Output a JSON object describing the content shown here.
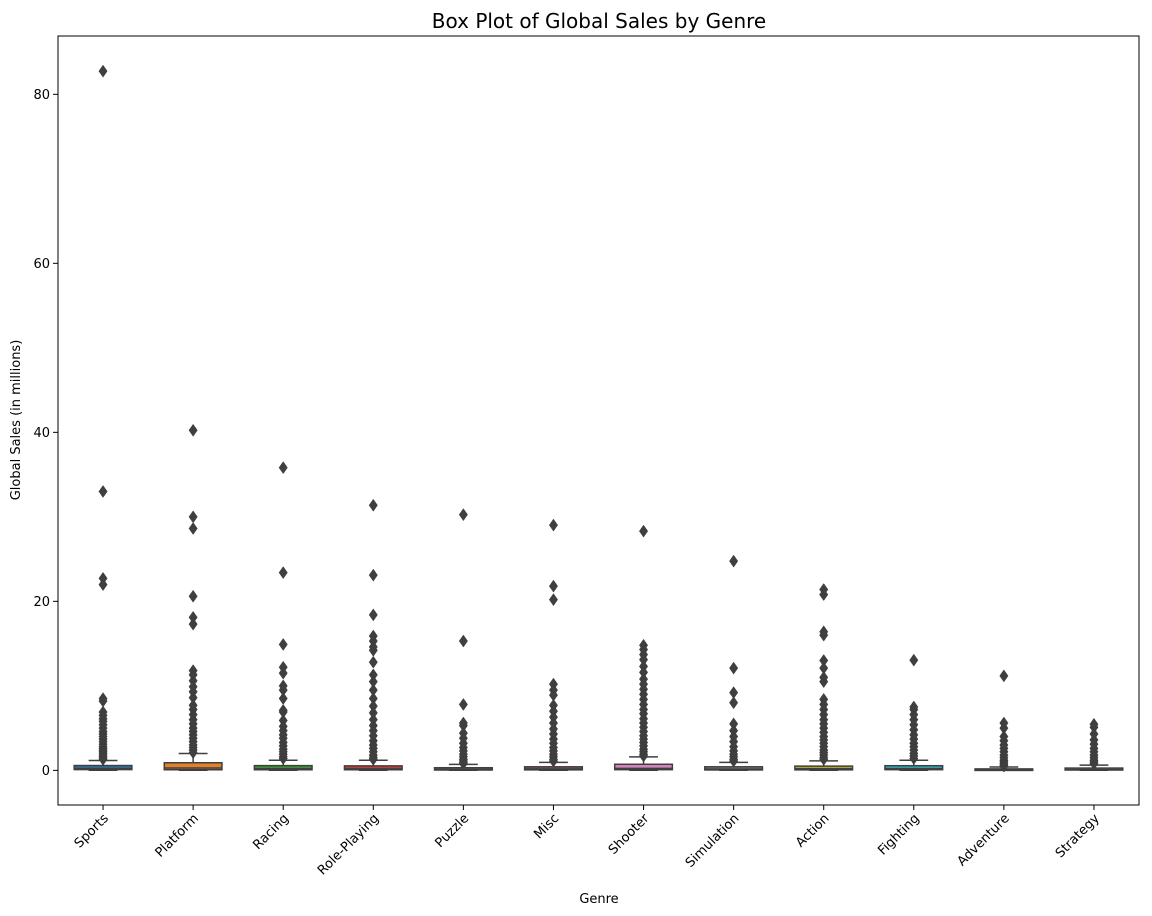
{
  "chart_data": {
    "type": "box",
    "title": "Box Plot of Global Sales by Genre",
    "xlabel": "Genre",
    "ylabel": "Global Sales (in millions)",
    "ylim": [
      -4.1,
      86.9
    ],
    "yticks": [
      0,
      20,
      40,
      60,
      80
    ],
    "grid": false,
    "legend": "none",
    "categories": [
      "Sports",
      "Platform",
      "Racing",
      "Role-Playing",
      "Puzzle",
      "Misc",
      "Shooter",
      "Simulation",
      "Action",
      "Fighting",
      "Adventure",
      "Strategy"
    ],
    "colors": [
      "#3274a1",
      "#e1812c",
      "#3a923a",
      "#c03d3e",
      "#9372b2",
      "#845b53",
      "#d684bd",
      "#7f7f7f",
      "#a9aa35",
      "#2eabb8",
      "#3274a1",
      "#e1812c"
    ],
    "boxes": [
      {
        "q1": 0.09,
        "median": 0.22,
        "q3": 0.57,
        "whislo": 0.01,
        "whishi": 1.17,
        "fliers": [
          82.74,
          33.0,
          22.72,
          21.98,
          8.49,
          8.2,
          6.9,
          6.5,
          6.1,
          5.8,
          5.4,
          5.0,
          4.6,
          4.3,
          4.0,
          3.7,
          3.4,
          3.1,
          2.8,
          2.6,
          2.4,
          2.2,
          2.0,
          1.8,
          1.6,
          1.45,
          1.3
        ]
      },
      {
        "q1": 0.07,
        "median": 0.28,
        "q3": 0.9,
        "whislo": 0.01,
        "whishi": 2.0,
        "fliers": [
          40.24,
          30.0,
          28.62,
          20.6,
          18.1,
          17.3,
          11.8,
          11.3,
          10.6,
          9.9,
          9.3,
          8.6,
          7.7,
          7.2,
          6.6,
          6.0,
          5.5,
          5.0,
          4.6,
          4.2,
          3.8,
          3.4,
          3.0,
          2.7,
          2.4,
          2.1
        ]
      },
      {
        "q1": 0.07,
        "median": 0.19,
        "q3": 0.56,
        "whislo": 0.01,
        "whishi": 1.2,
        "fliers": [
          35.82,
          23.4,
          14.9,
          12.2,
          11.5,
          10.0,
          9.5,
          8.5,
          7.1,
          6.9,
          5.9,
          5.2,
          4.7,
          4.2,
          3.8,
          3.3,
          2.9,
          2.5,
          2.2,
          1.9,
          1.6,
          1.4
        ]
      },
      {
        "q1": 0.07,
        "median": 0.18,
        "q3": 0.53,
        "whislo": 0.01,
        "whishi": 1.2,
        "fliers": [
          31.37,
          23.1,
          18.4,
          15.9,
          15.3,
          14.6,
          14.2,
          12.8,
          11.3,
          10.5,
          9.5,
          8.5,
          7.6,
          6.8,
          6.0,
          5.3,
          4.7,
          4.1,
          3.5,
          3.0,
          2.6,
          2.2,
          1.8,
          1.5,
          1.3
        ]
      },
      {
        "q1": 0.04,
        "median": 0.11,
        "q3": 0.31,
        "whislo": 0.01,
        "whishi": 0.7,
        "fliers": [
          30.26,
          15.3,
          7.8,
          5.6,
          5.3,
          4.4,
          3.8,
          3.2,
          2.7,
          2.3,
          1.9,
          1.6,
          1.3,
          1.1,
          0.9,
          0.8
        ]
      },
      {
        "q1": 0.06,
        "median": 0.16,
        "q3": 0.42,
        "whislo": 0.01,
        "whishi": 0.95,
        "fliers": [
          29.02,
          21.8,
          20.2,
          10.2,
          9.5,
          8.9,
          7.7,
          7.0,
          6.3,
          5.6,
          4.9,
          4.3,
          3.7,
          3.2,
          2.7,
          2.3,
          1.9,
          1.6,
          1.3,
          1.1
        ]
      },
      {
        "q1": 0.08,
        "median": 0.24,
        "q3": 0.72,
        "whislo": 0.01,
        "whishi": 1.6,
        "fliers": [
          28.31,
          14.8,
          14.3,
          13.7,
          13.1,
          12.3,
          11.6,
          10.8,
          10.2,
          9.6,
          9.0,
          8.4,
          7.8,
          7.2,
          6.7,
          6.1,
          5.6,
          5.1,
          4.6,
          4.1,
          3.7,
          3.3,
          2.9,
          2.5,
          2.2,
          1.9,
          1.7
        ]
      },
      {
        "q1": 0.05,
        "median": 0.15,
        "q3": 0.42,
        "whislo": 0.01,
        "whishi": 0.95,
        "fliers": [
          24.76,
          12.1,
          9.2,
          8.0,
          5.5,
          4.7,
          4.0,
          3.4,
          2.8,
          2.3,
          1.9,
          1.6,
          1.3,
          1.1
        ]
      },
      {
        "q1": 0.06,
        "median": 0.19,
        "q3": 0.5,
        "whislo": 0.01,
        "whishi": 1.12,
        "fliers": [
          21.4,
          20.8,
          16.4,
          16.0,
          13.0,
          12.1,
          11.0,
          10.5,
          8.4,
          7.8,
          7.2,
          6.6,
          6.0,
          5.5,
          5.0,
          4.5,
          4.0,
          3.6,
          3.2,
          2.8,
          2.4,
          2.1,
          1.8,
          1.5,
          1.3
        ]
      },
      {
        "q1": 0.08,
        "median": 0.21,
        "q3": 0.55,
        "whislo": 0.01,
        "whishi": 1.2,
        "fliers": [
          13.04,
          7.5,
          7.2,
          6.6,
          6.0,
          5.4,
          4.8,
          4.2,
          3.7,
          3.2,
          2.8,
          2.4,
          2.0,
          1.7,
          1.4
        ]
      },
      {
        "q1": 0.02,
        "median": 0.06,
        "q3": 0.17,
        "whislo": 0.01,
        "whishi": 0.4,
        "fliers": [
          11.18,
          5.6,
          5.0,
          4.0,
          3.5,
          3.0,
          2.6,
          2.2,
          1.8,
          1.5,
          1.2,
          1.0,
          0.8,
          0.6,
          0.5
        ]
      },
      {
        "q1": 0.04,
        "median": 0.1,
        "q3": 0.27,
        "whislo": 0.01,
        "whishi": 0.62,
        "fliers": [
          5.45,
          5.1,
          4.3,
          3.6,
          3.1,
          2.6,
          2.2,
          1.8,
          1.5,
          1.2,
          1.0,
          0.8
        ]
      }
    ]
  }
}
